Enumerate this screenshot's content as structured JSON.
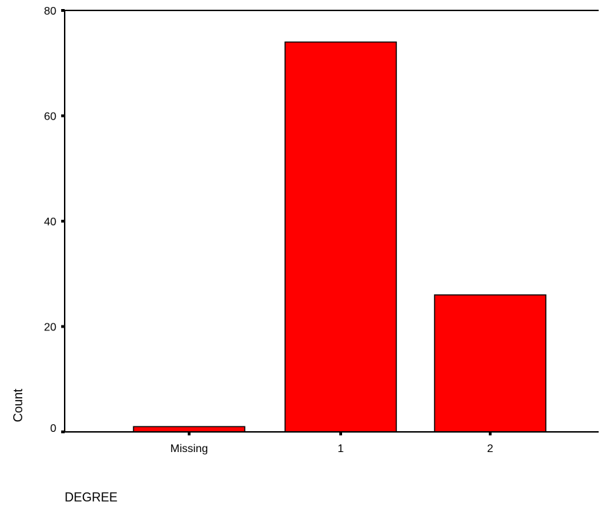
{
  "chart_data": {
    "type": "bar",
    "categories": [
      "Missing",
      "1",
      "2"
    ],
    "values": [
      1,
      74,
      26
    ],
    "xlabel": "DEGREE",
    "ylabel": "Count",
    "ylim": [
      0,
      80
    ],
    "yticks": [
      0,
      20,
      40,
      60,
      80
    ],
    "grid": false,
    "legend": "none",
    "bar_color": "#ff0000",
    "bar_edge_color": "#000000"
  }
}
